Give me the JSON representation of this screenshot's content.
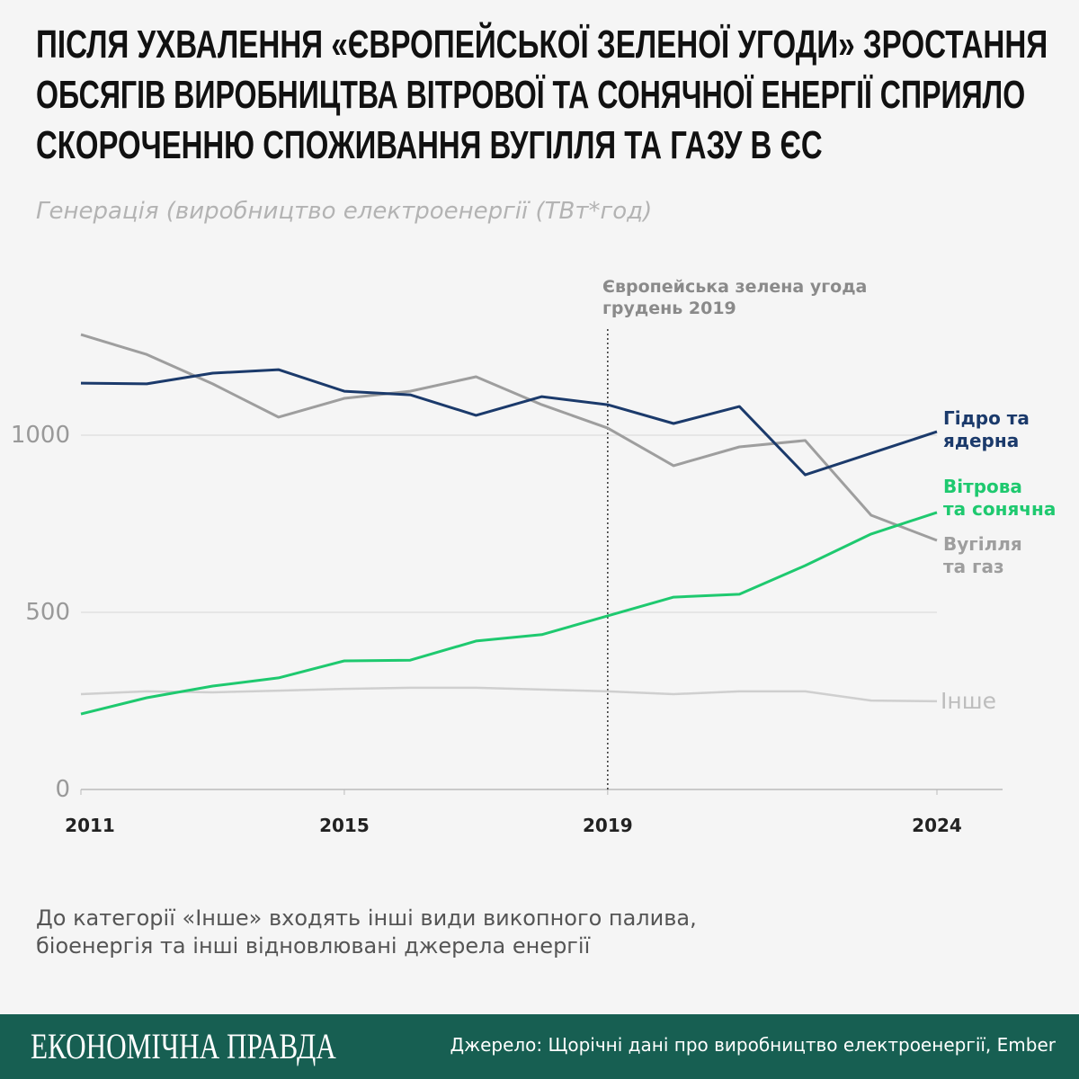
{
  "title": [
    "Після ухвалення «Європейської зеленої угоди» зростання",
    "обсягів виробництва вітрової та сонячної енергії сприяло",
    "скороченню споживання вугілля та газу в ЄС"
  ],
  "subtitle": "Генерація (виробництво електроенергії (ТВт*год)",
  "chart_data": {
    "type": "line",
    "x": [
      2011,
      2012,
      2013,
      2014,
      2015,
      2016,
      2017,
      2018,
      2019,
      2020,
      2021,
      2022,
      2023,
      2024
    ],
    "xticks": [
      "2011",
      "2015",
      "2019",
      "2024"
    ],
    "yticks": [
      "0",
      "500",
      "1000"
    ],
    "ylim": [
      0,
      1300
    ],
    "grid": true,
    "series": [
      {
        "name": "Гідро та ядерна",
        "label": [
          "Гідро та",
          "ядерна"
        ],
        "color": "#1b3a6b",
        "values": [
          1147,
          1145,
          1175,
          1185,
          1124,
          1114,
          1056,
          1109,
          1086,
          1033,
          1081,
          888,
          949,
          1010
        ]
      },
      {
        "name": "Вугілля та газ",
        "label": [
          "Вугілля",
          "та газ"
        ],
        "color": "#9e9e9e",
        "values": [
          1284,
          1228,
          1145,
          1051,
          1104,
          1124,
          1165,
          1086,
          1020,
          914,
          967,
          985,
          774,
          703
        ]
      },
      {
        "name": "Вітрова та сонячна",
        "label": [
          "Вітрова",
          "та сонячна"
        ],
        "color": "#1ec96f",
        "values": [
          213,
          259,
          292,
          315,
          363,
          365,
          419,
          437,
          490,
          543,
          551,
          632,
          721,
          782
        ]
      },
      {
        "name": "Інше",
        "label": [
          "Інше"
        ],
        "color": "#cfcfcf",
        "values": [
          269,
          277,
          274,
          279,
          284,
          287,
          287,
          282,
          277,
          269,
          277,
          277,
          251,
          249
        ]
      }
    ],
    "annotation": {
      "x": 2019,
      "lines": [
        "Європейська зелена угода",
        "грудень 2019"
      ]
    }
  },
  "note": [
    "До категорії «Інше» входять інші види викопного палива,",
    "біоенергія та інші відновлювані джерела енергії"
  ],
  "footer": {
    "logo": "ЕКОНОМІЧНА ПРАВДА",
    "source": "Джерело: Щорічні дані про виробництво електроенергії, Ember"
  }
}
